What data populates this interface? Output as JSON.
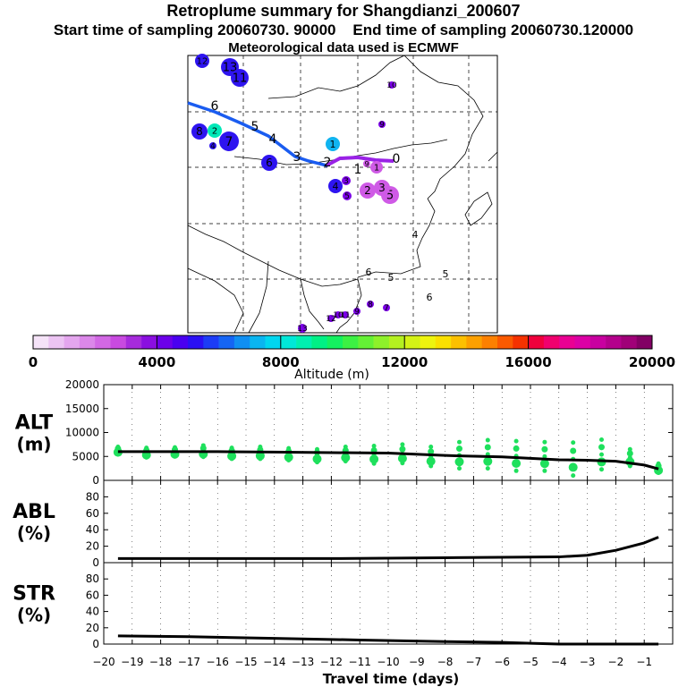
{
  "header": {
    "title": "Retroplume summary for Shangdianzi_200607",
    "start_label": "Start time of sampling 20060730. 90000",
    "end_label": "End time of sampling 20060730.120000",
    "met_label": "Meteorological data used is ECMWF"
  },
  "colorbar": {
    "colors": [
      "#f5e3f8",
      "#ecc4f3",
      "#e4a6ee",
      "#db87e9",
      "#d268e4",
      "#c84ae0",
      "#a62bdc",
      "#8a0fe0",
      "#6c00ea",
      "#4a00f0",
      "#2a10f4",
      "#1c3cf6",
      "#1565f4",
      "#108ff2",
      "#0ab5f0",
      "#00d6ef",
      "#00e8d8",
      "#00efb0",
      "#00f085",
      "#14f060",
      "#3cf043",
      "#64f035",
      "#8ef02a",
      "#b4f020",
      "#d4f216",
      "#eef40e",
      "#fae000",
      "#fcc000",
      "#fca000",
      "#fc8000",
      "#fa5a00",
      "#f53200",
      "#f0003c",
      "#f0006e",
      "#ea0093",
      "#dc00a5",
      "#c800a0",
      "#b4008c",
      "#a00078",
      "#820064"
    ],
    "tick_values": [
      0,
      4000,
      8000,
      12000,
      16000,
      20000
    ],
    "tick_labels": [
      "0",
      "4000",
      "8000",
      "12000",
      "16000",
      "20000"
    ],
    "label": "Altitude (m)"
  },
  "map": {
    "trajectory_labels": [
      "6",
      "5",
      "4",
      "3",
      "2",
      "1",
      "0"
    ],
    "markers": [
      {
        "label": "13",
        "color": "#2e14f0"
      },
      {
        "label": "11",
        "color": "#2e14f0"
      },
      {
        "label": "12",
        "color": "#2e14f0"
      },
      {
        "label": "10",
        "color": "#7a00e6"
      },
      {
        "label": "9",
        "color": "#7a00e6"
      },
      {
        "label": "8",
        "color": "#2e14f0"
      },
      {
        "label": "2",
        "color": "#00e8b8"
      },
      {
        "label": "7",
        "color": "#2e14f0"
      },
      {
        "label": "4",
        "color": "#2e14f0"
      },
      {
        "label": "6",
        "color": "#2e14f0"
      },
      {
        "label": "1",
        "color": "#10b4f0"
      },
      {
        "label": "1",
        "color": "#cf5ae6"
      },
      {
        "label": "4",
        "color": "#2e14f0"
      },
      {
        "label": "3",
        "color": "#7a00e6"
      },
      {
        "label": "5",
        "color": "#7a00e6"
      },
      {
        "label": "2",
        "color": "#cf5ae6"
      },
      {
        "label": "5",
        "color": "#cf5ae6"
      },
      {
        "label": "3",
        "color": "#cf5ae6"
      },
      {
        "label": "9",
        "color": "#cf5ae6"
      },
      {
        "label": "4",
        "color": "#000000"
      },
      {
        "label": "6",
        "color": "#000000"
      },
      {
        "label": "5",
        "color": "#000000"
      },
      {
        "label": "5",
        "color": "#000000"
      },
      {
        "label": "6",
        "color": "#000000"
      },
      {
        "label": "8",
        "color": "#7a00e6"
      },
      {
        "label": "7",
        "color": "#7a00e6"
      },
      {
        "label": "9",
        "color": "#7a00e6"
      },
      {
        "label": "11",
        "color": "#7a00e6"
      },
      {
        "label": "10",
        "color": "#7a00e6"
      },
      {
        "label": "12",
        "color": "#7a00e6"
      },
      {
        "label": "13",
        "color": "#7a00e6"
      }
    ]
  },
  "chart_data": [
    {
      "type": "line",
      "panel": "ALT",
      "ylabel": "ALT (m)",
      "ylim": [
        0,
        20000
      ],
      "yticks": [
        0,
        5000,
        10000,
        15000,
        20000
      ],
      "series": [
        {
          "name": "mean altitude",
          "x": [
            -19.5,
            -18,
            -16,
            -14,
            -12,
            -10,
            -8,
            -6,
            -4,
            -3,
            -2,
            -1,
            -0.5
          ],
          "values": [
            6000,
            6000,
            6000,
            5900,
            5800,
            5700,
            5200,
            4900,
            4300,
            4200,
            4000,
            3200,
            2400
          ]
        }
      ],
      "scatter": [
        {
          "x": -19.5,
          "values": [
            5500,
            7000
          ]
        },
        {
          "x": -18.5,
          "values": [
            4800,
            6800
          ]
        },
        {
          "x": -17.5,
          "values": [
            5000,
            6900
          ]
        },
        {
          "x": -16.5,
          "values": [
            4900,
            7300
          ]
        },
        {
          "x": -15.5,
          "values": [
            4500,
            6800
          ]
        },
        {
          "x": -14.5,
          "values": [
            4500,
            7000
          ]
        },
        {
          "x": -13.5,
          "values": [
            4200,
            6700
          ]
        },
        {
          "x": -12.5,
          "values": [
            3800,
            6500
          ]
        },
        {
          "x": -11.5,
          "values": [
            4000,
            7000
          ]
        },
        {
          "x": -10.5,
          "values": [
            3500,
            7200
          ]
        },
        {
          "x": -9.5,
          "values": [
            3600,
            7500
          ]
        },
        {
          "x": -8.5,
          "values": [
            3000,
            7000
          ]
        },
        {
          "x": -7.5,
          "values": [
            2500,
            8000
          ]
        },
        {
          "x": -6.5,
          "values": [
            2500,
            8400
          ]
        },
        {
          "x": -5.5,
          "values": [
            2000,
            8200
          ]
        },
        {
          "x": -4.5,
          "values": [
            2000,
            8000
          ]
        },
        {
          "x": -3.5,
          "values": [
            1000,
            7900
          ]
        },
        {
          "x": -2.5,
          "values": [
            2300,
            8500
          ]
        },
        {
          "x": -1.5,
          "values": [
            3000,
            6500
          ]
        },
        {
          "x": -0.5,
          "values": [
            1600,
            3500
          ]
        }
      ]
    },
    {
      "type": "line",
      "panel": "ABL",
      "ylabel": "ABL (%)",
      "ylim": [
        0,
        100
      ],
      "yticks": [
        0,
        20,
        40,
        60,
        80
      ],
      "series": [
        {
          "name": "ABL fraction",
          "x": [
            -19.5,
            -16,
            -12,
            -8,
            -4,
            -3,
            -2,
            -1,
            -0.5
          ],
          "values": [
            5,
            5,
            5,
            6,
            7,
            9,
            15,
            24,
            31
          ]
        }
      ]
    },
    {
      "type": "line",
      "panel": "STR",
      "ylabel": "STR (%)",
      "ylim": [
        0,
        100
      ],
      "yticks": [
        0,
        20,
        40,
        60,
        80
      ],
      "xlim": [
        -20,
        0
      ],
      "xticks": [
        -20,
        -19,
        -18,
        -17,
        -16,
        -15,
        -14,
        -13,
        -12,
        -11,
        -10,
        -9,
        -8,
        -7,
        -6,
        -5,
        -4,
        -3,
        -2,
        -1
      ],
      "xlabel": "Travel time (days)",
      "series": [
        {
          "name": "stratospheric fraction",
          "x": [
            -19.5,
            -17,
            -14,
            -11,
            -8,
            -6,
            -5,
            -4,
            -3,
            -2,
            -1,
            -0.5
          ],
          "values": [
            10,
            9,
            7,
            5,
            3,
            2,
            1,
            0,
            0,
            0,
            0,
            0
          ]
        }
      ]
    }
  ]
}
